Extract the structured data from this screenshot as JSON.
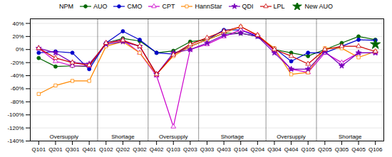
{
  "chart_data": {
    "type": "line",
    "legend": "top",
    "legend_title": "NPM",
    "grid": true,
    "categories": [
      "Q101",
      "Q201",
      "Q301",
      "Q401",
      "Q102",
      "Q202",
      "Q302",
      "Q402",
      "Q103",
      "Q203",
      "Q303",
      "Q403",
      "Q104",
      "Q204",
      "Q304",
      "Q404",
      "Q105",
      "Q205",
      "Q305",
      "Q405",
      "Q106"
    ],
    "annotations": [
      {
        "text": "Oversupply",
        "from": "Q101",
        "to": "Q401"
      },
      {
        "text": "Shortage",
        "from": "Q102",
        "to": "Q302"
      },
      {
        "text": "Oversupply",
        "from": "Q402",
        "to": "Q203"
      },
      {
        "text": "Shortage",
        "from": "Q303",
        "to": "Q204"
      },
      {
        "text": "Oversupply",
        "from": "Q304",
        "to": "Q105"
      },
      {
        "text": "Shortage",
        "from": "Q205",
        "to": "Q106"
      }
    ],
    "series": [
      {
        "name": "AUO",
        "color": "#006600",
        "marker": "circle",
        "line_style": "solid",
        "values": [
          -13,
          -26,
          -25,
          -26,
          10,
          17,
          13,
          -5,
          -2,
          12,
          15,
          25,
          25,
          20,
          0,
          -5,
          -10,
          0,
          10,
          20,
          15
        ]
      },
      {
        "name": "CMO",
        "color": "#0000cc",
        "marker": "circle",
        "line_style": "solid",
        "values": [
          -5,
          -3,
          -5,
          -30,
          10,
          28,
          15,
          -5,
          -7,
          5,
          15,
          30,
          30,
          20,
          2,
          -18,
          -5,
          -5,
          5,
          15,
          14
        ]
      },
      {
        "name": "CPT",
        "color": "#cc00cc",
        "marker": "triangle-open",
        "line_style": "solid",
        "values": [
          2,
          -18,
          -25,
          -25,
          10,
          15,
          -5,
          -40,
          -118,
          0,
          8,
          20,
          30,
          22,
          -2,
          -30,
          -35,
          -5,
          -20,
          -5,
          -5
        ]
      },
      {
        "name": "HannStar",
        "color": "#ff8800",
        "marker": "square-open",
        "line_style": "solid",
        "values": [
          -68,
          -55,
          -48,
          -48,
          5,
          12,
          -5,
          -38,
          -10,
          5,
          15,
          25,
          35,
          22,
          2,
          -38,
          -35,
          2,
          2,
          -12,
          -3
        ]
      },
      {
        "name": "QDI",
        "color": "#7700bb",
        "marker": "star",
        "line_style": "solid",
        "values": [
          2,
          -5,
          -20,
          -22,
          8,
          12,
          5,
          -38,
          -5,
          0,
          10,
          22,
          25,
          20,
          -5,
          -30,
          -30,
          -3,
          -25,
          -5,
          -5
        ]
      },
      {
        "name": "LPL",
        "color": "#cc0000",
        "marker": "triangle-open",
        "line_style": "solid",
        "values": [
          2,
          -13,
          -20,
          -24,
          10,
          14,
          5,
          -38,
          -8,
          8,
          18,
          28,
          35,
          22,
          0,
          -10,
          -22,
          0,
          5,
          5,
          -3
        ]
      },
      {
        "name": "New AUO",
        "color": "#006600",
        "marker": "star",
        "line_style": "none",
        "values": [
          null,
          null,
          null,
          null,
          null,
          null,
          null,
          null,
          null,
          null,
          null,
          null,
          null,
          null,
          null,
          null,
          null,
          null,
          null,
          null,
          8
        ]
      }
    ],
    "ylim": [
      -140,
      47
    ],
    "yticks": [
      {
        "value": 40,
        "label": "40%"
      },
      {
        "value": 20,
        "label": "20%"
      },
      {
        "value": 0,
        "label": "0%"
      },
      {
        "value": -20,
        "label": "-20%"
      },
      {
        "value": -40,
        "label": "-40%"
      },
      {
        "value": -60,
        "label": "-60%"
      },
      {
        "value": -80,
        "label": "-80%"
      },
      {
        "value": -100,
        "label": "-100%"
      },
      {
        "value": -120,
        "label": "-120%"
      },
      {
        "value": -140,
        "label": "-140%"
      }
    ]
  }
}
